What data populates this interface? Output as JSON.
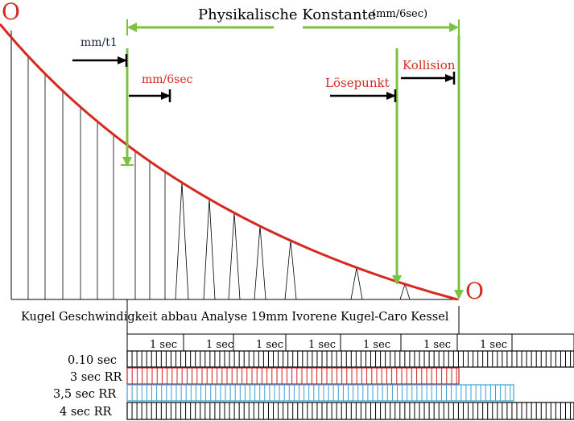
{
  "header": {
    "title": "Physikalische Konstante",
    "unit": "(mm/6sec)"
  },
  "curve": {
    "start_marker": "O",
    "end_marker": "O"
  },
  "labels": {
    "mm_t1": "mm/t1",
    "mm_6sec": "mm/6sec",
    "loesepunkt": "Lösepunkt",
    "kollision": "Kollision"
  },
  "caption": "Kugel Geschwindigkeit abbau Analyse 19mm Ivorene Kugel-Caro Kessel",
  "timeline": {
    "interval_label": "1 sec",
    "interval_count": 7
  },
  "rows": [
    {
      "label": "0.10 sec",
      "color": "#000000"
    },
    {
      "label": "3 sec RR",
      "color": "#cc2222"
    },
    {
      "label": "3,5 sec RR",
      "color": "#3aa0d8"
    },
    {
      "label": "4 sec RR",
      "color": "#000000"
    }
  ],
  "colors": {
    "curve": "#d42a20",
    "green": "#7cc242",
    "label_red": "#d42a20",
    "label_dark": "#1f2a44"
  }
}
